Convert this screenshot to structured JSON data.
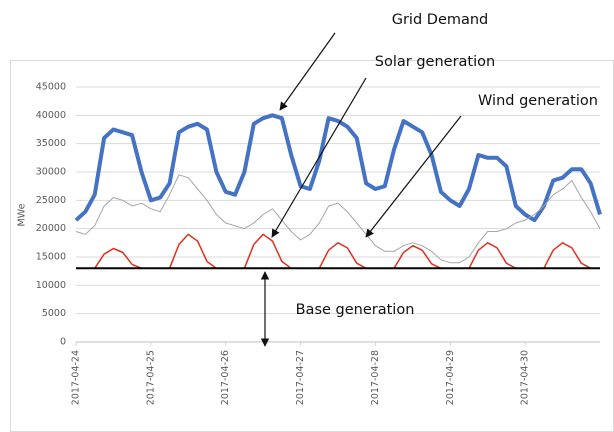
{
  "chart_data": {
    "type": "line",
    "y_label": "MWe",
    "x": [
      0,
      3,
      6,
      9,
      12,
      15,
      18,
      21,
      24,
      27,
      30,
      33,
      36,
      39,
      42,
      45,
      48,
      51,
      54,
      57,
      60,
      63,
      66,
      69,
      72,
      75,
      78,
      81,
      84,
      87,
      90,
      93,
      96,
      99,
      102,
      105,
      108,
      111,
      114,
      117,
      120,
      123,
      126,
      129,
      132,
      135,
      138,
      141,
      144,
      147,
      150,
      153,
      156,
      159,
      162,
      165,
      168
    ],
    "xlim": [
      0,
      168
    ],
    "xticks": [
      {
        "value": 0,
        "label": "2017-04-24"
      },
      {
        "value": 24,
        "label": "2017-04-25"
      },
      {
        "value": 48,
        "label": "2017-04-26"
      },
      {
        "value": 72,
        "label": "2017-04-27"
      },
      {
        "value": 96,
        "label": "2017-04-28"
      },
      {
        "value": 120,
        "label": "2017-04-29"
      },
      {
        "value": 144,
        "label": "2017-04-30"
      }
    ],
    "ylim": [
      0,
      45000
    ],
    "yticks": [
      0,
      5000,
      10000,
      15000,
      20000,
      25000,
      30000,
      35000,
      40000,
      45000
    ],
    "grid": true,
    "series": [
      {
        "color": "#4472c4",
        "values": [
          21500,
          23000,
          26000,
          36000,
          37500,
          37000,
          36500,
          30000,
          25000,
          25500,
          28000,
          37000,
          38000,
          38500,
          37500,
          30000,
          26500,
          26000,
          30000,
          38500,
          39500,
          40000,
          39500,
          33000,
          27500,
          27000,
          32000,
          39500,
          39000,
          38000,
          36000,
          28000,
          27000,
          27500,
          34000,
          39000,
          38000,
          37000,
          33000,
          26500,
          25000,
          24000,
          27000,
          33000,
          32500,
          32500,
          31000,
          24000,
          22500,
          21500,
          24000,
          28500,
          29000,
          30500,
          30500,
          28000,
          22500
        ]
      },
      {
        "color": "#a5a5a5",
        "values": [
          19500,
          19000,
          20500,
          24000,
          25500,
          25000,
          24000,
          24500,
          23500,
          23000,
          26000,
          29500,
          29000,
          27000,
          25000,
          22500,
          21000,
          20500,
          20000,
          21000,
          22500,
          23500,
          21500,
          19500,
          18000,
          19000,
          21000,
          24000,
          24500,
          23000,
          21000,
          19000,
          17000,
          16000,
          16000,
          17000,
          17500,
          17000,
          16000,
          14500,
          14000,
          14000,
          15000,
          17500,
          19500,
          19500,
          20000,
          21000,
          21500,
          22500,
          24000,
          26000,
          27000,
          28500,
          25500,
          23000,
          20000
        ]
      },
      {
        "color": "#e0301e",
        "values": [
          13000,
          13000,
          13000,
          15500,
          16500,
          15800,
          13700,
          13000,
          13000,
          13000,
          13000,
          17200,
          19000,
          17800,
          14200,
          13000,
          13000,
          13000,
          13000,
          17200,
          19000,
          17800,
          14200,
          13000,
          13000,
          13000,
          13000,
          16200,
          17500,
          16600,
          13900,
          13000,
          13000,
          13000,
          13000,
          15800,
          17000,
          16200,
          13800,
          13000,
          13000,
          13000,
          13000,
          16200,
          17500,
          16600,
          13900,
          13000,
          13000,
          13000,
          13000,
          16200,
          17500,
          16600,
          13900,
          13000,
          13000
        ]
      },
      {
        "color": "#000000",
        "values": [
          13000,
          13000,
          13000,
          13000,
          13000,
          13000,
          13000,
          13000,
          13000,
          13000,
          13000,
          13000,
          13000,
          13000,
          13000,
          13000,
          13000,
          13000,
          13000,
          13000,
          13000,
          13000,
          13000,
          13000,
          13000,
          13000,
          13000,
          13000,
          13000,
          13000,
          13000,
          13000,
          13000,
          13000,
          13000,
          13000,
          13000,
          13000,
          13000,
          13000,
          13000,
          13000,
          13000,
          13000,
          13000,
          13000,
          13000,
          13000,
          13000,
          13000,
          13000,
          13000,
          13000,
          13000,
          13000,
          13000,
          13000
        ]
      }
    ],
    "annotations": [
      {
        "text": "Grid Demand"
      },
      {
        "text": "Solar generation"
      },
      {
        "text": "Wind generation"
      },
      {
        "text": "Base generation"
      }
    ]
  }
}
